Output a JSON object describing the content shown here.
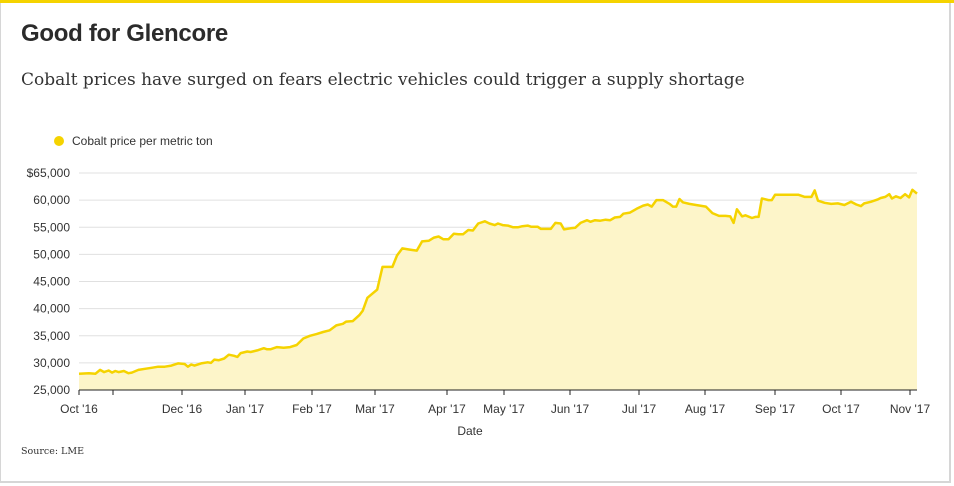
{
  "header": {
    "title": "Good for Glencore",
    "subtitle": "Cobalt prices have surged on fears electric vehicles could trigger a supply shortage"
  },
  "footer": {
    "source": "Source: LME"
  },
  "colors": {
    "accent": "#f5d300",
    "area_fill": "#fdf5c9",
    "grid": "#e0e0e0"
  },
  "chart_data": {
    "type": "area",
    "title": "Good for Glencore",
    "xlabel": "Date",
    "ylabel": "",
    "ylim": [
      25000,
      65000
    ],
    "grid": true,
    "legend": {
      "position": "top-left",
      "entries": [
        "Cobalt price per metric ton"
      ]
    },
    "y_ticks": [
      {
        "value": 65000,
        "label": "$65,000"
      },
      {
        "value": 60000,
        "label": "60,000"
      },
      {
        "value": 55000,
        "label": "55,000"
      },
      {
        "value": 50000,
        "label": "50,000"
      },
      {
        "value": 45000,
        "label": "45,000"
      },
      {
        "value": 40000,
        "label": "40,000"
      },
      {
        "value": 35000,
        "label": "35,000"
      },
      {
        "value": 30000,
        "label": "30,000"
      },
      {
        "value": 25000,
        "label": "25,000"
      }
    ],
    "x_ticks": [
      {
        "t": 0.0,
        "label": "Oct '16"
      },
      {
        "t": 0.5,
        "label": ""
      },
      {
        "t": 1.5,
        "label": "Dec '16"
      },
      {
        "t": 2.5,
        "label": "Jan '17"
      },
      {
        "t": 3.5,
        "label": "Feb '17"
      },
      {
        "t": 4.4,
        "label": "Mar '17"
      },
      {
        "t": 5.5,
        "label": "Apr '17"
      },
      {
        "t": 6.3,
        "label": "May '17"
      },
      {
        "t": 7.3,
        "label": "Jun '17"
      },
      {
        "t": 8.3,
        "label": "Jul '17"
      },
      {
        "t": 9.3,
        "label": "Aug '17"
      },
      {
        "t": 10.3,
        "label": "Sep '17"
      },
      {
        "t": 11.3,
        "label": "Oct '17"
      },
      {
        "t": 12.3,
        "label": "Nov '17"
      }
    ],
    "series": [
      {
        "name": "Cobalt price per metric ton",
        "points": [
          [
            0.0,
            28000
          ],
          [
            0.15,
            28100
          ],
          [
            0.25,
            28000
          ],
          [
            0.32,
            28700
          ],
          [
            0.38,
            28300
          ],
          [
            0.45,
            28600
          ],
          [
            0.5,
            28200
          ],
          [
            0.55,
            28500
          ],
          [
            0.6,
            28300
          ],
          [
            0.68,
            28500
          ],
          [
            0.75,
            28100
          ],
          [
            0.8,
            28200
          ],
          [
            0.9,
            28700
          ],
          [
            1.0,
            28900
          ],
          [
            1.1,
            29100
          ],
          [
            1.2,
            29300
          ],
          [
            1.3,
            29300
          ],
          [
            1.4,
            29500
          ],
          [
            1.5,
            29900
          ],
          [
            1.6,
            29800
          ],
          [
            1.65,
            29300
          ],
          [
            1.7,
            29700
          ],
          [
            1.75,
            29500
          ],
          [
            1.85,
            29900
          ],
          [
            1.95,
            30100
          ],
          [
            2.0,
            30000
          ],
          [
            2.05,
            30600
          ],
          [
            2.12,
            30500
          ],
          [
            2.2,
            30800
          ],
          [
            2.27,
            31500
          ],
          [
            2.35,
            31300
          ],
          [
            2.4,
            31100
          ],
          [
            2.45,
            31800
          ],
          [
            2.55,
            32100
          ],
          [
            2.6,
            32000
          ],
          [
            2.7,
            32300
          ],
          [
            2.8,
            32700
          ],
          [
            2.85,
            32500
          ],
          [
            2.9,
            32500
          ],
          [
            3.0,
            32900
          ],
          [
            3.1,
            32800
          ],
          [
            3.2,
            32900
          ],
          [
            3.3,
            33300
          ],
          [
            3.4,
            34500
          ],
          [
            3.5,
            35000
          ],
          [
            3.6,
            35300
          ],
          [
            3.7,
            35700
          ],
          [
            3.8,
            36000
          ],
          [
            3.9,
            36900
          ],
          [
            4.0,
            37200
          ],
          [
            4.05,
            37600
          ],
          [
            4.15,
            37700
          ],
          [
            4.25,
            38800
          ],
          [
            4.3,
            39600
          ],
          [
            4.37,
            42000
          ],
          [
            4.45,
            42800
          ],
          [
            4.52,
            43500
          ],
          [
            4.6,
            47700
          ],
          [
            4.75,
            47700
          ],
          [
            4.82,
            49800
          ],
          [
            4.9,
            51100
          ],
          [
            5.0,
            50900
          ],
          [
            5.05,
            50800
          ],
          [
            5.12,
            50700
          ],
          [
            5.2,
            52400
          ],
          [
            5.3,
            52500
          ],
          [
            5.38,
            53100
          ],
          [
            5.45,
            53300
          ],
          [
            5.52,
            52800
          ],
          [
            5.6,
            52800
          ],
          [
            5.68,
            53800
          ],
          [
            5.75,
            53700
          ],
          [
            5.82,
            53700
          ],
          [
            5.9,
            54500
          ],
          [
            5.97,
            54400
          ],
          [
            6.05,
            55700
          ],
          [
            6.15,
            56100
          ],
          [
            6.22,
            55700
          ],
          [
            6.3,
            55400
          ],
          [
            6.35,
            55700
          ],
          [
            6.42,
            55400
          ],
          [
            6.5,
            55300
          ],
          [
            6.58,
            55000
          ],
          [
            6.65,
            55000
          ],
          [
            6.72,
            55200
          ],
          [
            6.8,
            55300
          ],
          [
            6.85,
            55100
          ],
          [
            6.95,
            55100
          ],
          [
            7.0,
            54700
          ],
          [
            7.1,
            54700
          ],
          [
            7.15,
            54700
          ],
          [
            7.22,
            55800
          ],
          [
            7.3,
            55700
          ],
          [
            7.35,
            54600
          ],
          [
            7.45,
            54800
          ],
          [
            7.52,
            54900
          ],
          [
            7.6,
            55800
          ],
          [
            7.7,
            56300
          ],
          [
            7.75,
            56000
          ],
          [
            7.82,
            56300
          ],
          [
            7.9,
            56200
          ],
          [
            7.98,
            56400
          ],
          [
            8.05,
            56300
          ],
          [
            8.12,
            56800
          ],
          [
            8.2,
            56900
          ],
          [
            8.25,
            57500
          ],
          [
            8.35,
            57700
          ],
          [
            8.45,
            58400
          ],
          [
            8.55,
            59000
          ],
          [
            8.62,
            59200
          ],
          [
            8.68,
            58800
          ],
          [
            8.75,
            60000
          ],
          [
            8.85,
            60000
          ],
          [
            8.95,
            59300
          ],
          [
            9.0,
            58800
          ],
          [
            9.05,
            58800
          ],
          [
            9.1,
            60200
          ],
          [
            9.15,
            59600
          ],
          [
            9.25,
            59300
          ],
          [
            9.35,
            59100
          ],
          [
            9.5,
            58800
          ],
          [
            9.6,
            57600
          ],
          [
            9.7,
            57100
          ],
          [
            9.8,
            57100
          ],
          [
            9.87,
            57000
          ],
          [
            9.92,
            55800
          ],
          [
            9.97,
            58300
          ],
          [
            10.05,
            57000
          ],
          [
            10.1,
            57200
          ],
          [
            10.2,
            56700
          ],
          [
            10.25,
            56900
          ],
          [
            10.3,
            56900
          ],
          [
            10.35,
            60300
          ],
          [
            10.45,
            60000
          ],
          [
            10.5,
            60000
          ],
          [
            10.55,
            61000
          ],
          [
            10.65,
            61000
          ],
          [
            10.75,
            61000
          ],
          [
            10.9,
            61000
          ],
          [
            11.0,
            60600
          ],
          [
            11.1,
            60600
          ],
          [
            11.15,
            61800
          ],
          [
            11.2,
            59900
          ],
          [
            11.3,
            59500
          ],
          [
            11.4,
            59300
          ],
          [
            11.5,
            59400
          ],
          [
            11.6,
            59100
          ],
          [
            11.7,
            59700
          ],
          [
            11.78,
            59200
          ],
          [
            11.85,
            58900
          ],
          [
            11.9,
            59400
          ],
          [
            12.0,
            59700
          ],
          [
            12.1,
            60100
          ],
          [
            12.15,
            60400
          ],
          [
            12.22,
            60600
          ],
          [
            12.28,
            61100
          ],
          [
            12.32,
            60300
          ],
          [
            12.38,
            60700
          ],
          [
            12.45,
            60400
          ],
          [
            12.52,
            61100
          ],
          [
            12.58,
            60500
          ],
          [
            12.63,
            61900
          ],
          [
            12.7,
            61200
          ]
        ]
      }
    ]
  }
}
